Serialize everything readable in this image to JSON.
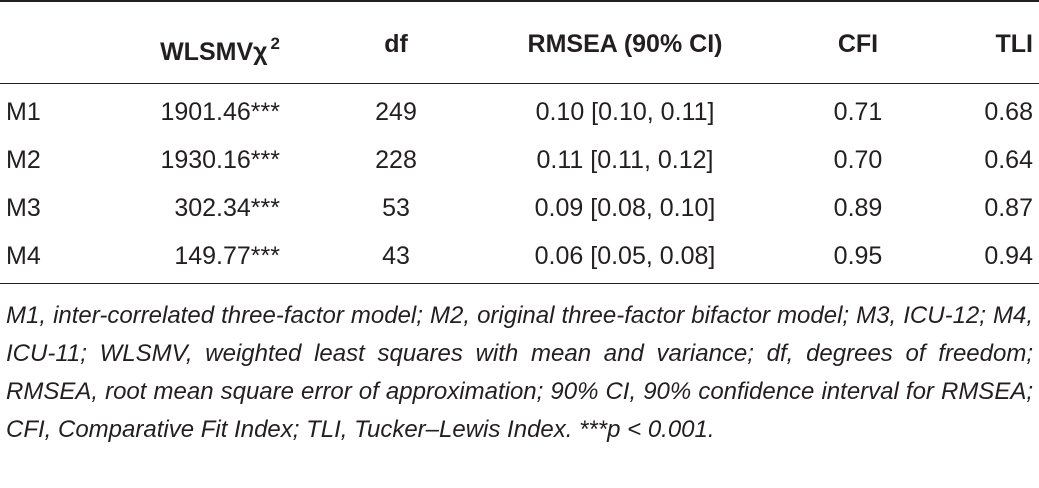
{
  "table": {
    "header": {
      "model": "",
      "chi_label": "WLSMV",
      "chi_symbol": "χ",
      "chi_superscript": "2",
      "df": "df",
      "rmsea": "RMSEA (90% CI)",
      "cfi": "CFI",
      "tli": "TLI"
    },
    "rows": [
      {
        "model": "M1",
        "chi": "1901.46***",
        "df": "249",
        "rmsea": "0.10 [0.10, 0.11]",
        "cfi": "0.71",
        "tli": "0.68"
      },
      {
        "model": "M2",
        "chi": "1930.16***",
        "df": "228",
        "rmsea": "0.11 [0.11, 0.12]",
        "cfi": "0.70",
        "tli": "0.64"
      },
      {
        "model": "M3",
        "chi": "302.34***",
        "df": "53",
        "rmsea": "0.09 [0.08, 0.10]",
        "cfi": "0.89",
        "tli": "0.87"
      },
      {
        "model": "M4",
        "chi": "149.77***",
        "df": "43",
        "rmsea": "0.06 [0.05, 0.08]",
        "cfi": "0.95",
        "tli": "0.94"
      }
    ],
    "note": "M1, inter-correlated three-factor model; M2, original three-factor bifactor model; M3, ICU-12; M4, ICU-11; WLSMV, weighted least squares with mean and variance; df, degrees of freedom; RMSEA, root mean square error of approximation; 90% CI, 90% confidence interval for RMSEA; CFI, Comparative Fit Index; TLI, Tucker–Lewis Index. ***p < 0.001."
  }
}
